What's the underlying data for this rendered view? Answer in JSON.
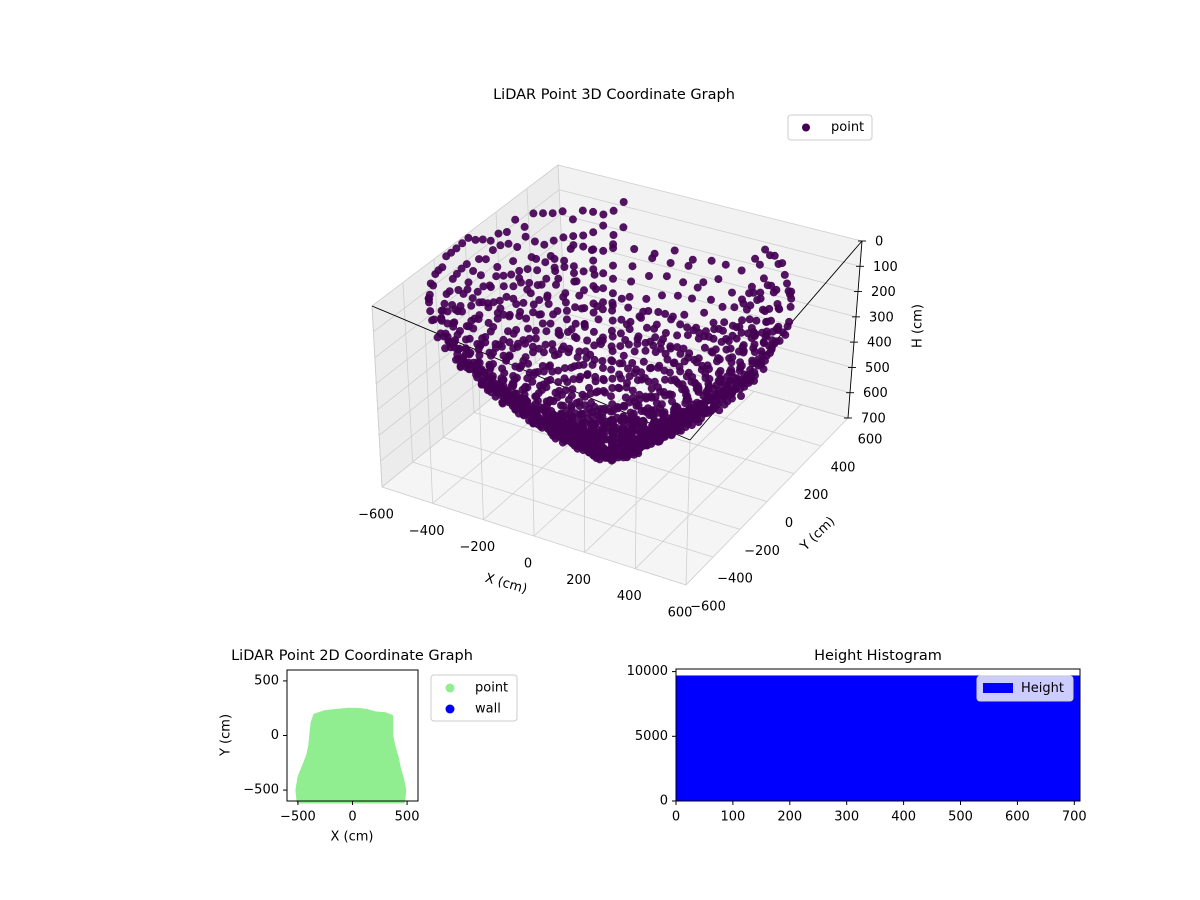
{
  "colors": {
    "point3d": "#440154",
    "point2d": "#90ee90",
    "wall": "#0000ff",
    "histogram": "#0000ff",
    "pane": "#f2f2f2",
    "grid": "#cccccc"
  },
  "chart_data": [
    {
      "type": "scatter",
      "projection": "3d",
      "title": "LiDAR Point 3D Coordinate Graph",
      "xlabel": "X (cm)",
      "ylabel": "Y (cm)",
      "zlabel": "H (cm)",
      "xlim": [
        -600,
        600
      ],
      "ylim": [
        -600,
        600
      ],
      "zlim": [
        0,
        700
      ],
      "z_inverted": true,
      "x_ticks": [
        -600,
        -400,
        -200,
        0,
        200,
        400,
        600
      ],
      "y_ticks": [
        -600,
        -400,
        -200,
        0,
        200,
        400,
        600
      ],
      "z_ticks": [
        0,
        100,
        200,
        300,
        400,
        500,
        600,
        700
      ],
      "legend": {
        "placement": "upper-right",
        "entries": [
          "point"
        ]
      },
      "series": [
        {
          "name": "point",
          "color": "#440154",
          "shape": "dome point cloud of concentric rings",
          "center": [
            0,
            0
          ],
          "radius_max": 600,
          "height_range": [
            0,
            700
          ]
        }
      ]
    },
    {
      "type": "scatter",
      "title": "LiDAR Point 2D Coordinate Graph",
      "xlabel": "X (cm)",
      "ylabel": "Y (cm)",
      "xlim": [
        -600,
        600
      ],
      "ylim": [
        -600,
        600
      ],
      "x_ticks": [
        -500,
        0,
        500
      ],
      "y_ticks": [
        -500,
        0,
        500
      ],
      "legend": {
        "placement": "outside-right",
        "entries": [
          "point",
          "wall"
        ]
      },
      "series": [
        {
          "name": "point",
          "color": "#90ee90",
          "outline": [
            [
              -490,
              -600
            ],
            [
              -500,
              -500
            ],
            [
              -480,
              -380
            ],
            [
              -440,
              -280
            ],
            [
              -400,
              -180
            ],
            [
              -380,
              -80
            ],
            [
              -370,
              40
            ],
            [
              -360,
              120
            ],
            [
              -340,
              180
            ],
            [
              -250,
              210
            ],
            [
              -150,
              220
            ],
            [
              -50,
              230
            ],
            [
              50,
              230
            ],
            [
              130,
              220
            ],
            [
              200,
              200
            ],
            [
              300,
              190
            ],
            [
              350,
              170
            ],
            [
              350,
              0
            ],
            [
              370,
              -100
            ],
            [
              400,
              -200
            ],
            [
              420,
              -300
            ],
            [
              450,
              -400
            ],
            [
              470,
              -500
            ],
            [
              460,
              -600
            ]
          ]
        },
        {
          "name": "wall",
          "color": "#0000ff",
          "points": []
        }
      ]
    },
    {
      "type": "bar",
      "subtype": "histogram",
      "title": "Height Histogram",
      "xlim": [
        0,
        710
      ],
      "ylim": [
        0,
        10200
      ],
      "x_ticks": [
        0,
        100,
        200,
        300,
        400,
        500,
        600,
        700
      ],
      "y_ticks": [
        0,
        5000,
        10000
      ],
      "legend": {
        "placement": "upper-right",
        "entries": [
          "Height"
        ]
      },
      "series": [
        {
          "name": "Height",
          "color": "#0000ff",
          "bins": [
            [
              0,
              710,
              9700
            ]
          ]
        }
      ]
    }
  ]
}
